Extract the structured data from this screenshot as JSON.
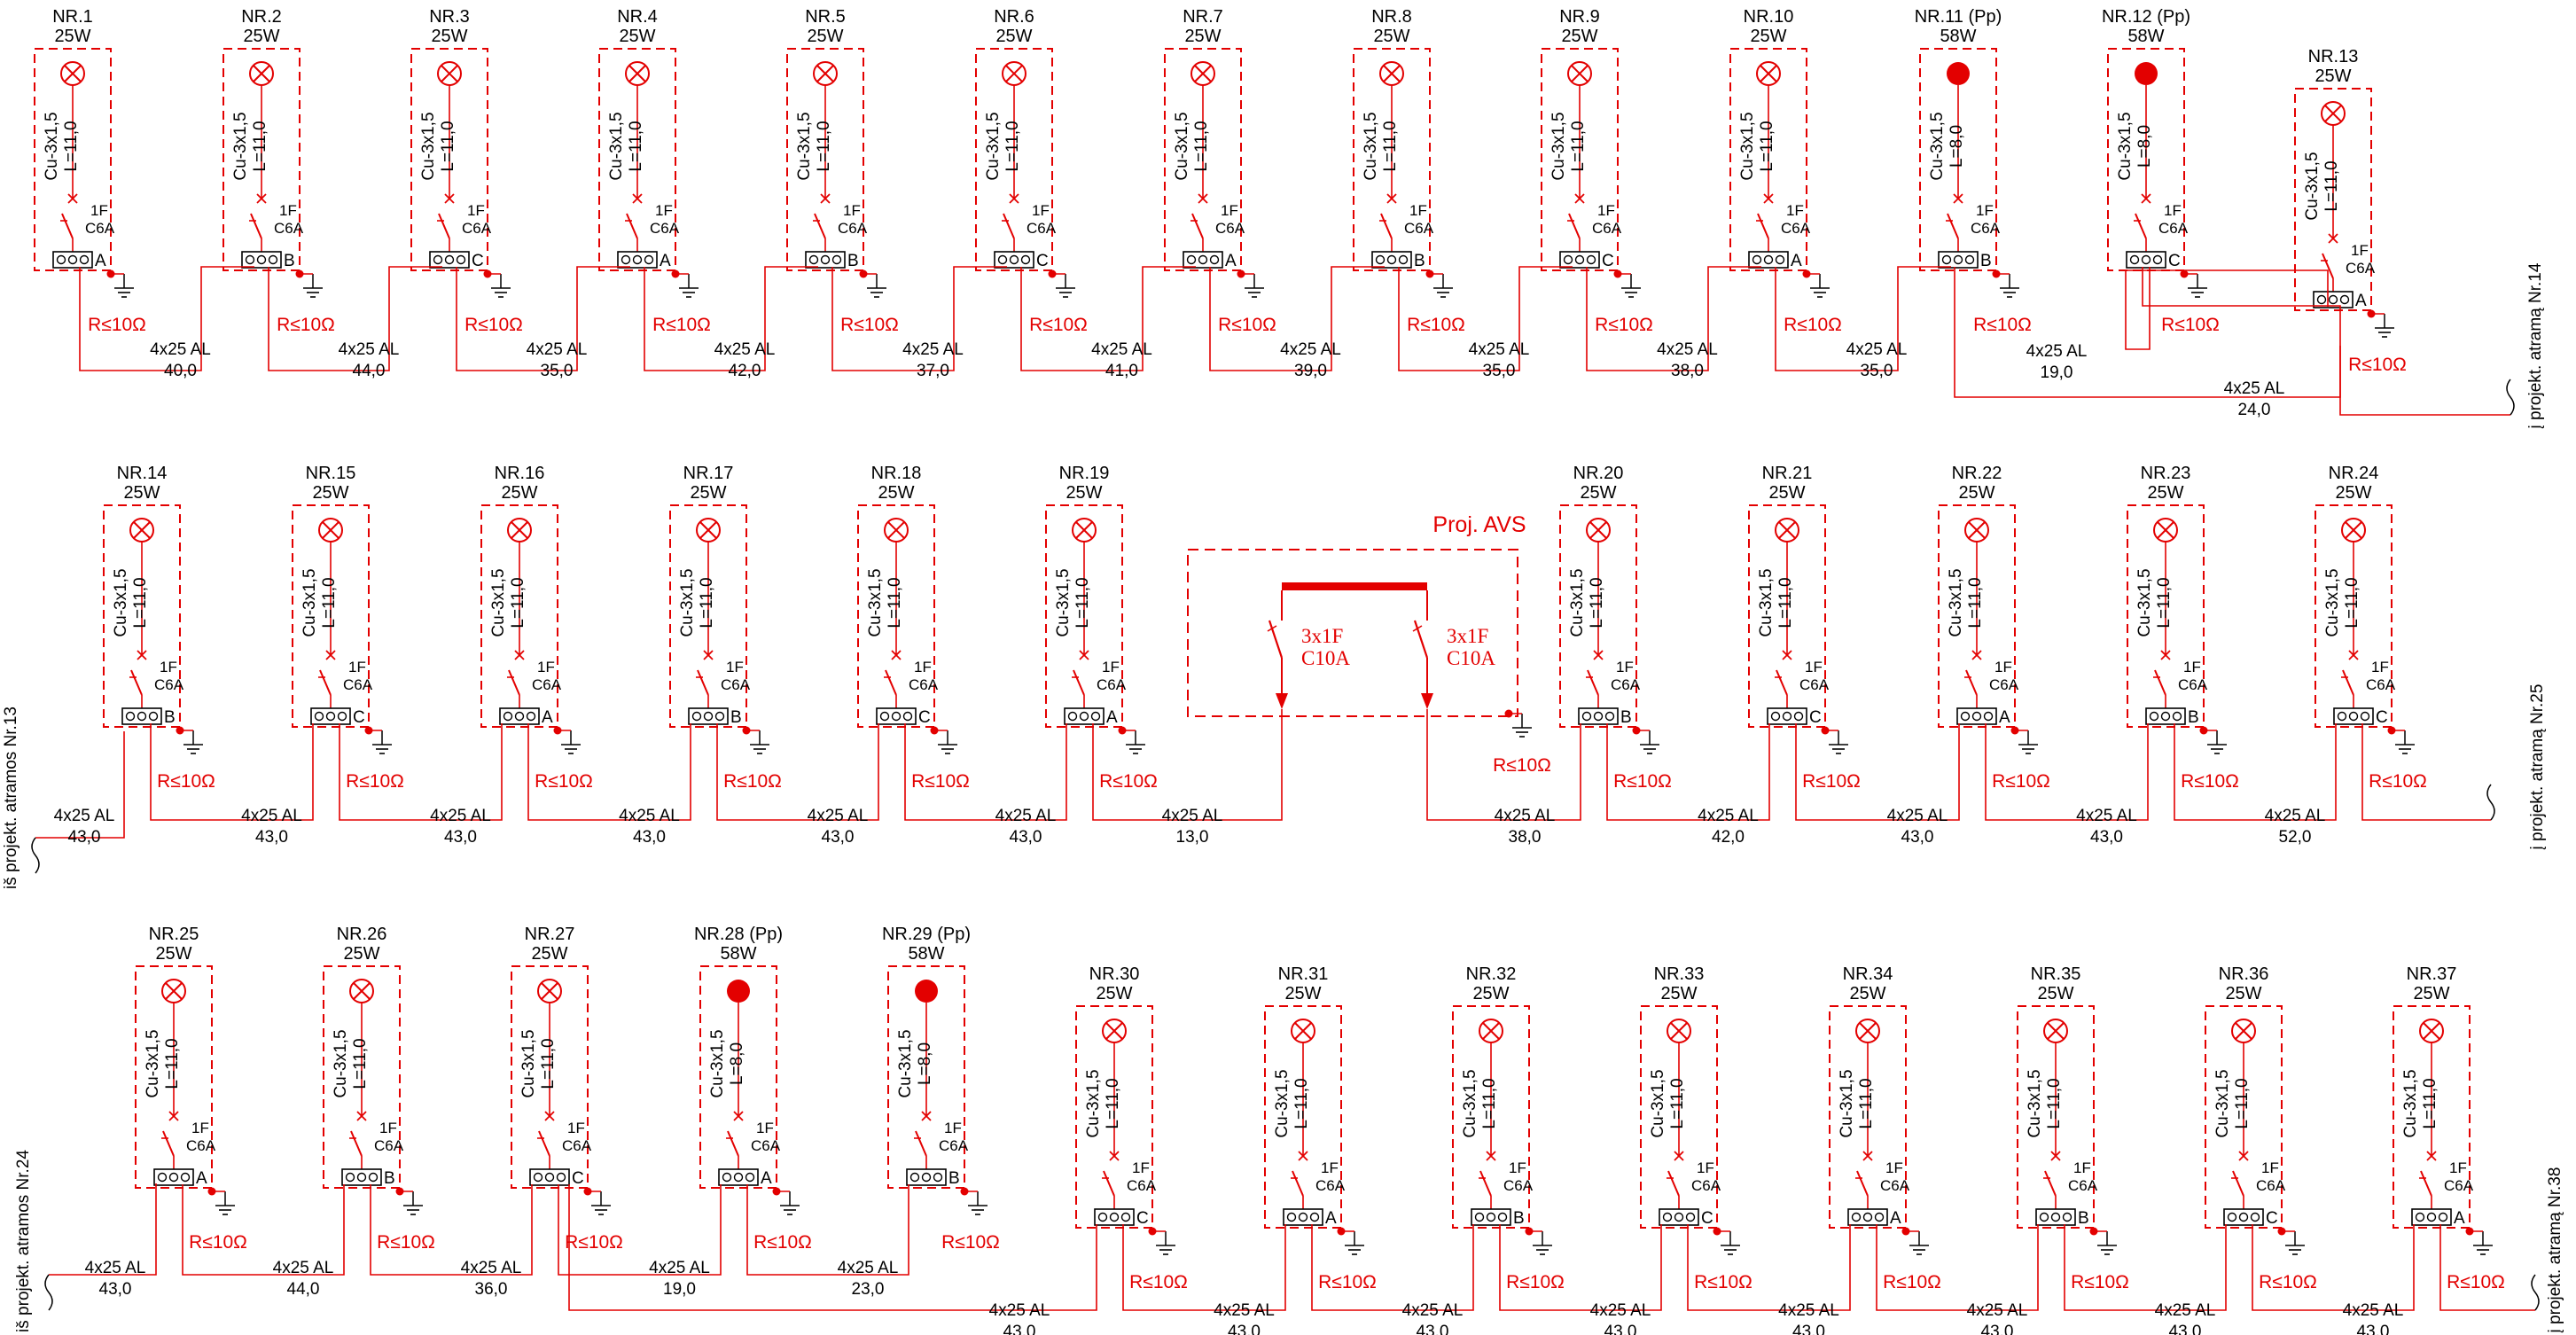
{
  "colors": {
    "wire": "#e30000",
    "text": "#000000",
    "box": "#e30000",
    "background": "#ffffff"
  },
  "icons": {
    "lamp": "lamp-cross-icon",
    "lamp_filled": "lamp-filled-icon",
    "breaker": "breaker-icon",
    "ground": "ground-icon",
    "terminal": "terminal-block-icon"
  },
  "common": {
    "cable_lamp": "Cu-3x1,5",
    "breaker_poles": "1F",
    "breaker_rating": "C6A",
    "resistance": "R≤10Ω",
    "feeder": "4x25 AL"
  },
  "rows": [
    {
      "poles": [
        {
          "nr": "NR.1",
          "power": "25W",
          "len": "L=11,0",
          "phase": "A",
          "filled": false
        },
        {
          "nr": "NR.2",
          "power": "25W",
          "len": "L=11,0",
          "phase": "B",
          "filled": false
        },
        {
          "nr": "NR.3",
          "power": "25W",
          "len": "L=11,0",
          "phase": "C",
          "filled": false
        },
        {
          "nr": "NR.4",
          "power": "25W",
          "len": "L=11,0",
          "phase": "A",
          "filled": false
        },
        {
          "nr": "NR.5",
          "power": "25W",
          "len": "L=11,0",
          "phase": "B",
          "filled": false
        },
        {
          "nr": "NR.6",
          "power": "25W",
          "len": "L=11,0",
          "phase": "C",
          "filled": false
        },
        {
          "nr": "NR.7",
          "power": "25W",
          "len": "L=11,0",
          "phase": "A",
          "filled": false
        },
        {
          "nr": "NR.8",
          "power": "25W",
          "len": "L=11,0",
          "phase": "B",
          "filled": false
        },
        {
          "nr": "NR.9",
          "power": "25W",
          "len": "L=11,0",
          "phase": "C",
          "filled": false
        },
        {
          "nr": "NR.10",
          "power": "25W",
          "len": "L=11,0",
          "phase": "A",
          "filled": false
        },
        {
          "nr": "NR.11 (Pp)",
          "power": "58W",
          "len": "L=8,0",
          "phase": "B",
          "filled": true
        },
        {
          "nr": "NR.12 (Pp)",
          "power": "58W",
          "len": "L=8,0",
          "phase": "C",
          "filled": true
        },
        {
          "nr": "NR.13",
          "power": "25W",
          "len": "L=11,0",
          "phase": "A",
          "filled": false
        }
      ],
      "distances": [
        "40,0",
        "44,0",
        "35,0",
        "42,0",
        "37,0",
        "41,0",
        "39,0",
        "35,0",
        "38,0",
        "35,0",
        "19,0",
        "24,0"
      ],
      "right_label": "į projekt. atramą Nr.14"
    },
    {
      "poles": [
        {
          "nr": "NR.14",
          "power": "25W",
          "len": "L=11,0",
          "phase": "B",
          "filled": false
        },
        {
          "nr": "NR.15",
          "power": "25W",
          "len": "L=11,0",
          "phase": "C",
          "filled": false
        },
        {
          "nr": "NR.16",
          "power": "25W",
          "len": "L=11,0",
          "phase": "A",
          "filled": false
        },
        {
          "nr": "NR.17",
          "power": "25W",
          "len": "L=11,0",
          "phase": "B",
          "filled": false
        },
        {
          "nr": "NR.18",
          "power": "25W",
          "len": "L=11,0",
          "phase": "C",
          "filled": false
        },
        {
          "nr": "NR.19",
          "power": "25W",
          "len": "L=11,0",
          "phase": "A",
          "filled": false
        },
        {
          "nr": "NR.20",
          "power": "25W",
          "len": "L=11,0",
          "phase": "B",
          "filled": false
        },
        {
          "nr": "NR.21",
          "power": "25W",
          "len": "L=11,0",
          "phase": "C",
          "filled": false
        },
        {
          "nr": "NR.22",
          "power": "25W",
          "len": "L=11,0",
          "phase": "A",
          "filled": false
        },
        {
          "nr": "NR.23",
          "power": "25W",
          "len": "L=11,0",
          "phase": "B",
          "filled": false
        },
        {
          "nr": "NR.24",
          "power": "25W",
          "len": "L=11,0",
          "phase": "C",
          "filled": false
        }
      ],
      "distances": [
        "43,0",
        "43,0",
        "43,0",
        "43,0",
        "43,0",
        "43,0",
        "13,0",
        "38,0",
        "42,0",
        "43,0",
        "43,0",
        "52,0"
      ],
      "left_label": "iš projekt. atramos Nr.13",
      "right_label": "į projekt. atramą Nr.25",
      "avs": {
        "title": "Proj. AVS",
        "breaker1": "3x1F",
        "rating1": "C10A",
        "breaker2": "3x1F",
        "rating2": "C10A",
        "resistance": "R≤10Ω"
      }
    },
    {
      "poles": [
        {
          "nr": "NR.25",
          "power": "25W",
          "len": "L=11,0",
          "phase": "A",
          "filled": false
        },
        {
          "nr": "NR.26",
          "power": "25W",
          "len": "L=11,0",
          "phase": "B",
          "filled": false
        },
        {
          "nr": "NR.27",
          "power": "25W",
          "len": "L=11,0",
          "phase": "C",
          "filled": false
        },
        {
          "nr": "NR.28 (Pp)",
          "power": "58W",
          "len": "L=8,0",
          "phase": "A",
          "filled": true
        },
        {
          "nr": "NR.29 (Pp)",
          "power": "58W",
          "len": "L=8,0",
          "phase": "B",
          "filled": true
        },
        {
          "nr": "NR.30",
          "power": "25W",
          "len": "L=11,0",
          "phase": "C",
          "filled": false
        },
        {
          "nr": "NR.31",
          "power": "25W",
          "len": "L=11,0",
          "phase": "A",
          "filled": false
        },
        {
          "nr": "NR.32",
          "power": "25W",
          "len": "L=11,0",
          "phase": "B",
          "filled": false
        },
        {
          "nr": "NR.33",
          "power": "25W",
          "len": "L=11,0",
          "phase": "C",
          "filled": false
        },
        {
          "nr": "NR.34",
          "power": "25W",
          "len": "L=11,0",
          "phase": "A",
          "filled": false
        },
        {
          "nr": "NR.35",
          "power": "25W",
          "len": "L=11,0",
          "phase": "B",
          "filled": false
        },
        {
          "nr": "NR.36",
          "power": "25W",
          "len": "L=11,0",
          "phase": "C",
          "filled": false
        },
        {
          "nr": "NR.37",
          "power": "25W",
          "len": "L=11,0",
          "phase": "A",
          "filled": false
        }
      ],
      "distances": [
        "43,0",
        "44,0",
        "36,0",
        "19,0",
        "23,0",
        "43,0",
        "43,0",
        "43,0",
        "43,0",
        "43,0",
        "43,0",
        "43,0",
        "43,0",
        "43,0"
      ],
      "left_label": "iš projekt. atramos Nr.24",
      "right_label": "į projekt. atramą Nr.38"
    }
  ]
}
